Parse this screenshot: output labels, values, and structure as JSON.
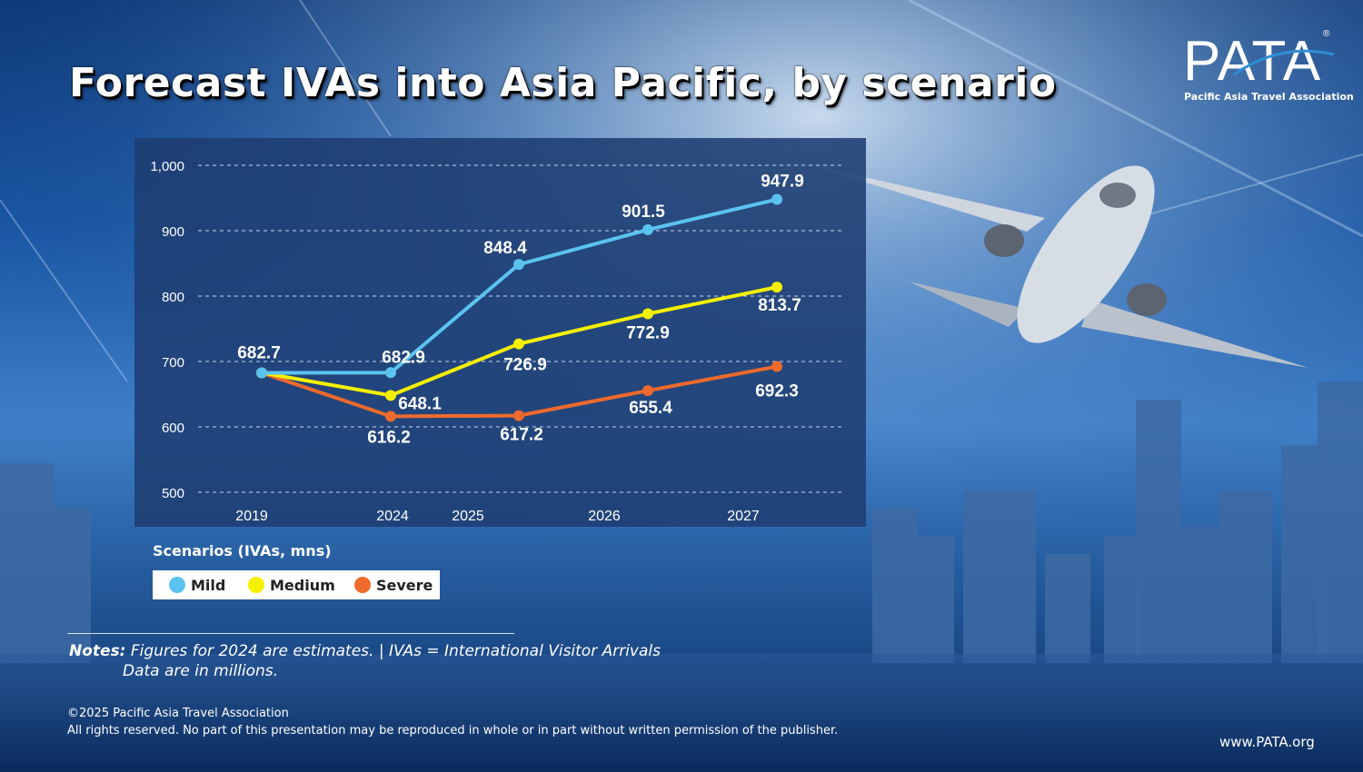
{
  "title": "Forecast IVAs into Asia Pacific, by scenario",
  "logo": {
    "text": "PATA",
    "registered": "®",
    "subtitle": "Pacific Asia Travel Association"
  },
  "legend_title": "Scenarios (IVAs, mns)",
  "notes": {
    "label": "Notes:",
    "line1": " Figures for 2024 are estimates. | IVAs = International Visitor Arrivals",
    "line2": "Data are in millions."
  },
  "copyright": {
    "line1": "©2025 Pacific Asia Travel Association",
    "line2": "All rights reserved. No part of this presentation may be reproduced in whole or in part without written permission of the publisher."
  },
  "website": "www.PATA.org",
  "colors": {
    "mild": "#5bc3f0",
    "medium": "#f5f000",
    "severe": "#ee6a2c",
    "panel": "#1e3d72"
  },
  "chart_data": {
    "type": "line",
    "title": "Forecast IVAs into Asia Pacific, by scenario",
    "ylim": [
      500,
      1000
    ],
    "yticks": [
      "500",
      "600",
      "700",
      "800",
      "900",
      "1,000"
    ],
    "ytick_values": [
      500,
      600,
      700,
      800,
      900,
      1000
    ],
    "x_tick_labels": [
      "2019",
      "2024",
      "2025",
      "2026",
      "2027"
    ],
    "grid": true,
    "series": [
      {
        "name": "Mild",
        "color": "#5bc3f0",
        "values": [
          682.7,
          682.9,
          848.4,
          901.5,
          947.9
        ],
        "labels": [
          "682.7",
          "682.9",
          "848.4",
          "901.5",
          "947.9"
        ]
      },
      {
        "name": "Medium",
        "color": "#f5f000",
        "values": [
          682.7,
          648.1,
          726.9,
          772.9,
          813.7
        ],
        "labels": [
          "",
          "648.1",
          "726.9",
          "772.9",
          "813.7"
        ]
      },
      {
        "name": "Severe",
        "color": "#ee6a2c",
        "values": [
          682.7,
          616.2,
          617.2,
          655.4,
          692.3
        ],
        "labels": [
          "",
          "616.2",
          "617.2",
          "655.4",
          "692.3"
        ]
      }
    ]
  }
}
